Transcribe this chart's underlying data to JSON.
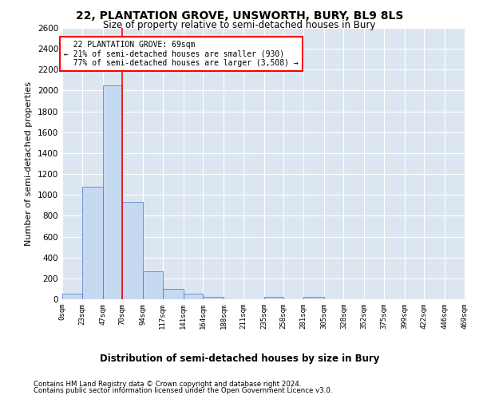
{
  "title": "22, PLANTATION GROVE, UNSWORTH, BURY, BL9 8LS",
  "subtitle": "Size of property relative to semi-detached houses in Bury",
  "xlabel": "Distribution of semi-detached houses by size in Bury",
  "ylabel": "Number of semi-detached properties",
  "property_label": "22 PLANTATION GROVE: 69sqm",
  "pct_smaller": 21,
  "n_smaller": 930,
  "pct_larger": 77,
  "n_larger": 3508,
  "bin_labels": [
    "0sqm",
    "23sqm",
    "47sqm",
    "70sqm",
    "94sqm",
    "117sqm",
    "141sqm",
    "164sqm",
    "188sqm",
    "211sqm",
    "235sqm",
    "258sqm",
    "281sqm",
    "305sqm",
    "328sqm",
    "352sqm",
    "375sqm",
    "399sqm",
    "422sqm",
    "446sqm",
    "469sqm"
  ],
  "bin_edges": [
    0,
    23,
    47,
    70,
    94,
    117,
    141,
    164,
    188,
    211,
    235,
    258,
    281,
    305,
    328,
    352,
    375,
    399,
    422,
    446,
    469
  ],
  "bar_values": [
    55,
    1075,
    2050,
    930,
    270,
    100,
    50,
    25,
    0,
    0,
    20,
    0,
    20,
    0,
    0,
    0,
    0,
    0,
    0,
    0
  ],
  "bar_color": "#c5d9f1",
  "bar_edge_color": "#4472c4",
  "vline_x": 70,
  "background_color": "#dce6f1",
  "ylim": [
    0,
    2600
  ],
  "yticks": [
    0,
    200,
    400,
    600,
    800,
    1000,
    1200,
    1400,
    1600,
    1800,
    2000,
    2200,
    2400,
    2600
  ],
  "footer1": "Contains HM Land Registry data © Crown copyright and database right 2024.",
  "footer2": "Contains public sector information licensed under the Open Government Licence v3.0."
}
